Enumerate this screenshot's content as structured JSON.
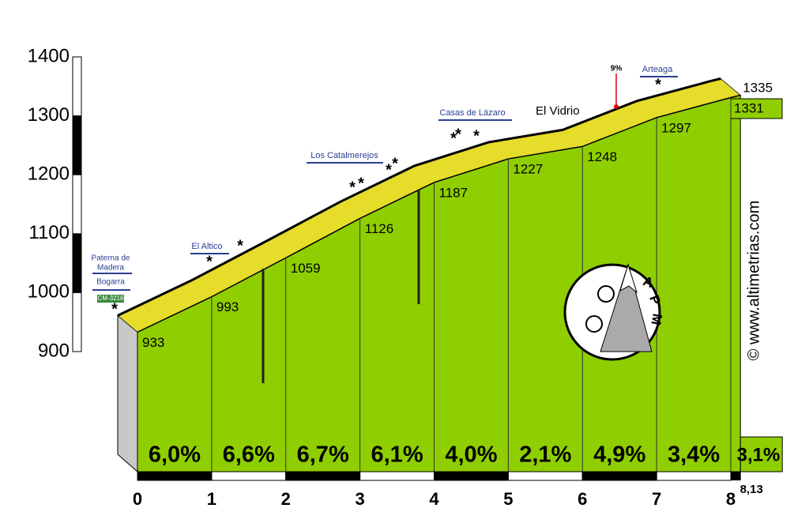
{
  "chart_data": {
    "type": "profile",
    "x": [
      0,
      1,
      2,
      3,
      4,
      5,
      6,
      7,
      8,
      8.13
    ],
    "values": [
      933,
      993,
      1059,
      1126,
      1187,
      1227,
      1248,
      1297,
      1331,
      1335
    ],
    "gradients": {
      "values": [
        6.0,
        6.6,
        6.7,
        6.1,
        4.0,
        2.1,
        4.9,
        3.4,
        3.1
      ],
      "value_labels": [
        "6,0%",
        "6,6%",
        "6,7%",
        "6,1%",
        "4,0%",
        "2,1%",
        "4,9%",
        "3,4%",
        "3,1%"
      ]
    },
    "ylim": [
      900,
      1400
    ],
    "yticks": [
      900,
      1000,
      1100,
      1200,
      1300,
      1400
    ],
    "xlim": [
      0,
      8.13
    ],
    "xticks": [
      0,
      1,
      2,
      3,
      4,
      5,
      6,
      7,
      8,
      {
        "value": 8.13,
        "label": "8,13"
      }
    ],
    "color": "#8fce00",
    "ribbon_color": "#e6dc2a",
    "annotations": [
      "Paterna de",
      "Madera",
      "Bogarra",
      "CM-3216",
      "El Altico",
      "Los Catalmerejos",
      "Casas de Lázaro",
      "El Vidrio",
      "Arteaga",
      "9%"
    ],
    "logo": [
      "A",
      "P",
      "M"
    ],
    "watermark": "© www.altimetrias.com"
  }
}
